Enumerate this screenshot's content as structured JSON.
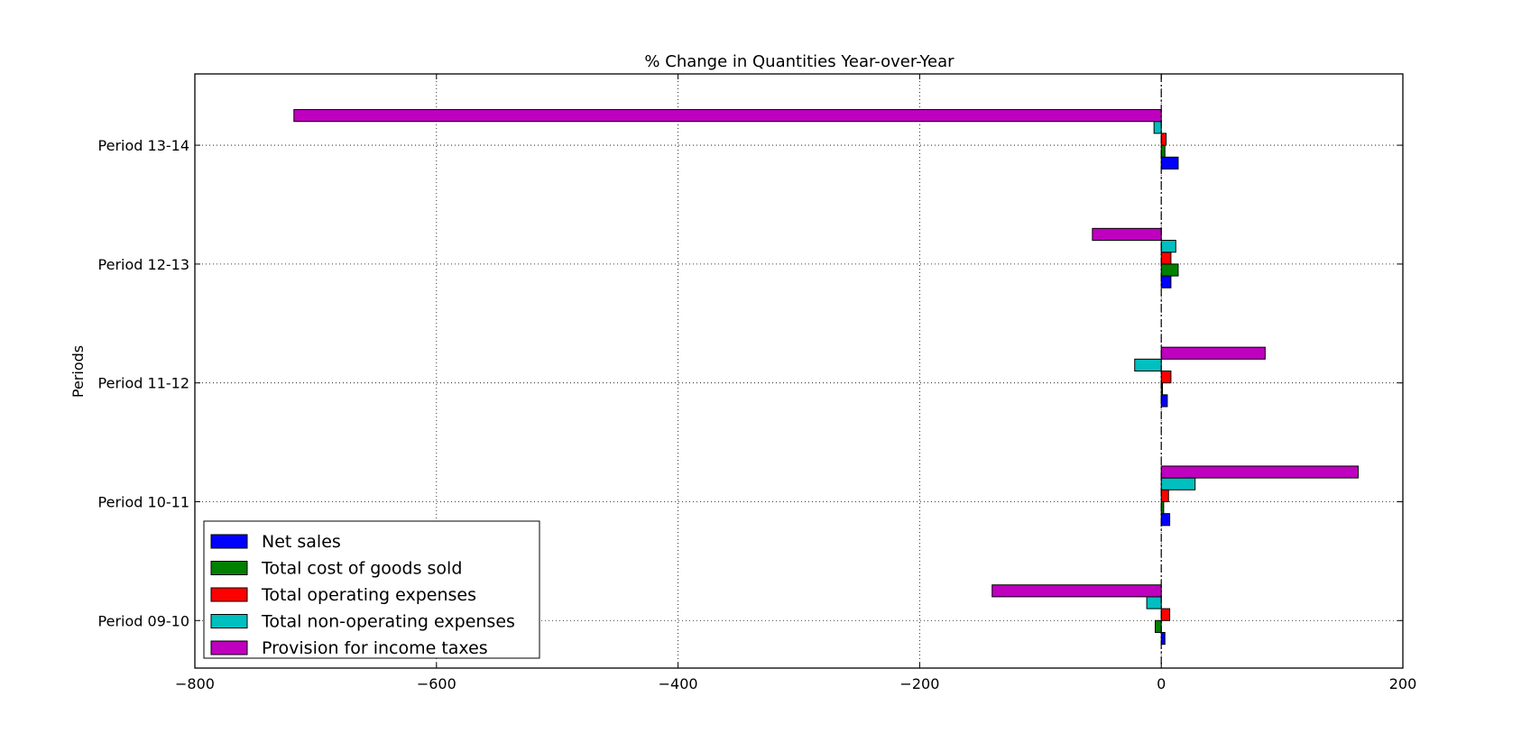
{
  "chart_data": {
    "type": "bar",
    "orientation": "horizontal",
    "title": "% Change in Quantities Year-over-Year",
    "xlabel": "",
    "ylabel": "Periods",
    "xlim": [
      -800,
      200
    ],
    "xticks": [
      -800,
      -600,
      -400,
      -200,
      0,
      200
    ],
    "xtick_labels": [
      "−800",
      "−600",
      "−400",
      "−200",
      "0",
      "200"
    ],
    "categories": [
      "Period 09-10",
      "Period 10-11",
      "Period 11-12",
      "Period 12-13",
      "Period 13-14"
    ],
    "grid": true,
    "zero_line": "dash-dot",
    "legend_position": "lower-left",
    "series": [
      {
        "name": "Net sales",
        "color": "#0000ff",
        "values": [
          3,
          7,
          5,
          8,
          14
        ]
      },
      {
        "name": "Total cost of goods sold",
        "color": "#008000",
        "values": [
          -5,
          2,
          1,
          14,
          3
        ]
      },
      {
        "name": "Total operating expenses",
        "color": "#ff0000",
        "values": [
          7,
          6,
          8,
          8,
          4
        ]
      },
      {
        "name": "Total non-operating expenses",
        "color": "#00bfbf",
        "values": [
          -12,
          28,
          -22,
          12,
          -6
        ]
      },
      {
        "name": "Provision for income taxes",
        "color": "#bf00bf",
        "values": [
          -140,
          163,
          86,
          -57,
          -718
        ]
      }
    ]
  }
}
